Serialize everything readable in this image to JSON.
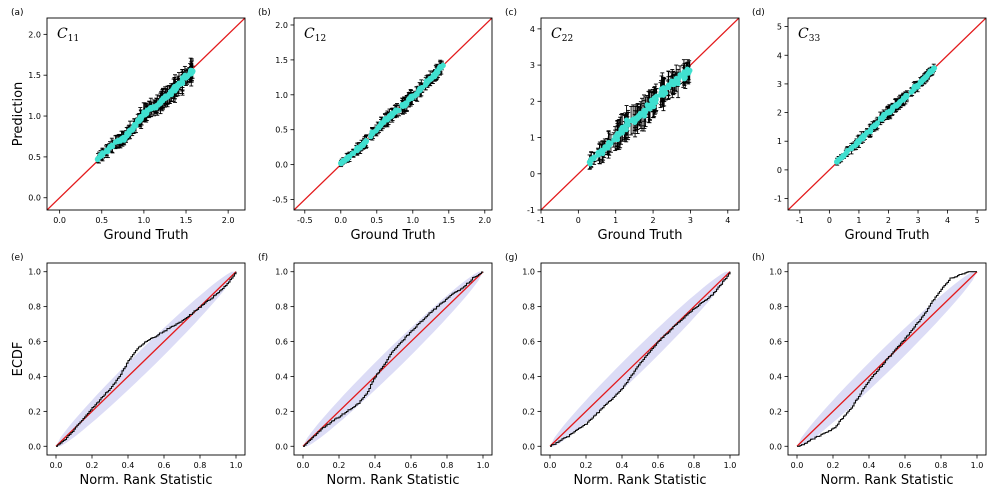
{
  "colors": {
    "identity_line": "#e31a1c",
    "ecdf_line": "#111111",
    "prediction_points": "#40e0d0",
    "error_bars": "#000000",
    "confidence_band": "#dcdcf6"
  },
  "chart_data": [
    {
      "panel": "(a)",
      "type": "scatter",
      "title": "C",
      "title_sub": "11",
      "xlabel": "Ground Truth",
      "ylabel": "Prediction",
      "xlim": [
        -0.15,
        2.2
      ],
      "ylim": [
        -0.15,
        2.2
      ],
      "xticks": [
        "0.0",
        "0.5",
        "1.0",
        "1.5",
        "2.0"
      ],
      "yticks": [
        "0.0",
        "0.5",
        "1.0",
        "1.5",
        "2.0"
      ],
      "identity_line": true,
      "data_range": [
        0.45,
        1.58
      ],
      "points": [
        {
          "x": 0.45,
          "y": 0.47,
          "err": 0.05
        },
        {
          "x": 0.6,
          "y": 0.62,
          "err": 0.06
        },
        {
          "x": 0.8,
          "y": 0.76,
          "err": 0.07
        },
        {
          "x": 1.0,
          "y": 1.02,
          "err": 0.08
        },
        {
          "x": 1.2,
          "y": 1.17,
          "err": 0.09
        },
        {
          "x": 1.4,
          "y": 1.38,
          "err": 0.1
        },
        {
          "x": 1.58,
          "y": 1.55,
          "err": 0.1
        }
      ]
    },
    {
      "panel": "(b)",
      "type": "scatter",
      "title": "C",
      "title_sub": "12",
      "xlabel": "Ground Truth",
      "ylabel": "",
      "xlim": [
        -0.65,
        2.1
      ],
      "ylim": [
        -0.65,
        2.1
      ],
      "xticks": [
        "-0.5",
        "0.0",
        "0.5",
        "1.0",
        "1.5",
        "2.0"
      ],
      "yticks": [
        "-0.5",
        "0.0",
        "0.5",
        "1.0",
        "1.5",
        "2.0"
      ],
      "identity_line": true,
      "data_range": [
        0.0,
        1.42
      ],
      "points": [
        {
          "x": 0.0,
          "y": 0.02,
          "err": 0.04
        },
        {
          "x": 0.3,
          "y": 0.28,
          "err": 0.06
        },
        {
          "x": 0.6,
          "y": 0.62,
          "err": 0.07
        },
        {
          "x": 0.9,
          "y": 0.88,
          "err": 0.08
        },
        {
          "x": 1.2,
          "y": 1.18,
          "err": 0.08
        },
        {
          "x": 1.42,
          "y": 1.42,
          "err": 0.07
        }
      ]
    },
    {
      "panel": "(c)",
      "type": "scatter",
      "title": "C",
      "title_sub": "22",
      "xlabel": "Ground Truth",
      "ylabel": "",
      "xlim": [
        -1.0,
        4.3
      ],
      "ylim": [
        -1.0,
        4.3
      ],
      "xticks": [
        "-1",
        "0",
        "1",
        "2",
        "3",
        "4"
      ],
      "yticks": [
        "-1",
        "0",
        "1",
        "2",
        "3",
        "4"
      ],
      "identity_line": true,
      "data_range": [
        0.3,
        2.98
      ],
      "points": [
        {
          "x": 0.3,
          "y": 0.32,
          "err": 0.15
        },
        {
          "x": 0.8,
          "y": 0.78,
          "err": 0.25
        },
        {
          "x": 1.3,
          "y": 1.35,
          "err": 0.3
        },
        {
          "x": 1.8,
          "y": 1.75,
          "err": 0.3
        },
        {
          "x": 2.3,
          "y": 2.32,
          "err": 0.3
        },
        {
          "x": 2.98,
          "y": 2.85,
          "err": 0.25
        }
      ]
    },
    {
      "panel": "(d)",
      "type": "scatter",
      "title": "C",
      "title_sub": "33",
      "xlabel": "Ground Truth",
      "ylabel": "",
      "xlim": [
        -1.4,
        5.3
      ],
      "ylim": [
        -1.4,
        5.3
      ],
      "xticks": [
        "-1",
        "0",
        "1",
        "2",
        "3",
        "4",
        "5"
      ],
      "yticks": [
        "-1",
        "0",
        "1",
        "2",
        "3",
        "4",
        "5"
      ],
      "identity_line": true,
      "data_range": [
        0.25,
        3.55
      ],
      "points": [
        {
          "x": 0.25,
          "y": 0.28,
          "err": 0.08
        },
        {
          "x": 1.0,
          "y": 0.98,
          "err": 0.15
        },
        {
          "x": 1.8,
          "y": 1.82,
          "err": 0.15
        },
        {
          "x": 2.6,
          "y": 2.55,
          "err": 0.15
        },
        {
          "x": 3.55,
          "y": 3.55,
          "err": 0.1
        }
      ]
    },
    {
      "panel": "(e)",
      "type": "line",
      "xlabel": "Norm. Rank Statistic",
      "ylabel": "ECDF",
      "xlim": [
        -0.05,
        1.05
      ],
      "ylim": [
        -0.05,
        1.05
      ],
      "xticks": [
        "0.0",
        "0.2",
        "0.4",
        "0.6",
        "0.8",
        "1.0"
      ],
      "yticks": [
        "0.0",
        "0.2",
        "0.4",
        "0.6",
        "0.8",
        "1.0"
      ],
      "identity_line": true,
      "band_halfwidth": 0.05,
      "ecdf": {
        "x": [
          0.0,
          0.05,
          0.1,
          0.2,
          0.3,
          0.35,
          0.4,
          0.45,
          0.5,
          0.55,
          0.6,
          0.7,
          0.8,
          0.9,
          0.95,
          1.0
        ],
        "y": [
          0.0,
          0.04,
          0.1,
          0.22,
          0.33,
          0.4,
          0.49,
          0.56,
          0.6,
          0.63,
          0.66,
          0.72,
          0.8,
          0.88,
          0.93,
          1.0
        ]
      }
    },
    {
      "panel": "(f)",
      "type": "line",
      "xlabel": "Norm. Rank Statistic",
      "ylabel": "",
      "xlim": [
        -0.05,
        1.05
      ],
      "ylim": [
        -0.05,
        1.05
      ],
      "xticks": [
        "0.0",
        "0.2",
        "0.4",
        "0.6",
        "0.8",
        "1.0"
      ],
      "yticks": [
        "0.0",
        "0.2",
        "0.4",
        "0.6",
        "0.8",
        "1.0"
      ],
      "identity_line": true,
      "band_halfwidth": 0.05,
      "ecdf": {
        "x": [
          0.0,
          0.05,
          0.1,
          0.2,
          0.3,
          0.35,
          0.4,
          0.45,
          0.5,
          0.6,
          0.7,
          0.8,
          0.9,
          0.95,
          1.0
        ],
        "y": [
          0.0,
          0.05,
          0.1,
          0.17,
          0.24,
          0.3,
          0.4,
          0.47,
          0.55,
          0.66,
          0.76,
          0.85,
          0.92,
          0.97,
          1.0
        ]
      }
    },
    {
      "panel": "(g)",
      "type": "line",
      "xlabel": "Norm. Rank Statistic",
      "ylabel": "",
      "xlim": [
        -0.05,
        1.05
      ],
      "ylim": [
        -0.05,
        1.05
      ],
      "xticks": [
        "0.0",
        "0.2",
        "0.4",
        "0.6",
        "0.8",
        "1.0"
      ],
      "yticks": [
        "0.0",
        "0.2",
        "0.4",
        "0.6",
        "0.8",
        "1.0"
      ],
      "identity_line": true,
      "band_halfwidth": 0.05,
      "ecdf": {
        "x": [
          0.0,
          0.05,
          0.1,
          0.2,
          0.3,
          0.4,
          0.5,
          0.6,
          0.7,
          0.8,
          0.9,
          0.95,
          1.0
        ],
        "y": [
          0.0,
          0.03,
          0.06,
          0.13,
          0.23,
          0.33,
          0.48,
          0.6,
          0.7,
          0.79,
          0.87,
          0.93,
          1.0
        ]
      }
    },
    {
      "panel": "(h)",
      "type": "line",
      "xlabel": "Norm. Rank Statistic",
      "ylabel": "",
      "xlim": [
        -0.05,
        1.05
      ],
      "ylim": [
        -0.05,
        1.05
      ],
      "xticks": [
        "0.0",
        "0.2",
        "0.4",
        "0.6",
        "0.8",
        "1.0"
      ],
      "yticks": [
        "0.0",
        "0.2",
        "0.4",
        "0.6",
        "0.8",
        "1.0"
      ],
      "identity_line": true,
      "band_halfwidth": 0.05,
      "ecdf": {
        "x": [
          0.0,
          0.05,
          0.1,
          0.2,
          0.3,
          0.4,
          0.5,
          0.6,
          0.7,
          0.75,
          0.8,
          0.85,
          0.9,
          0.95,
          1.0
        ],
        "y": [
          0.0,
          0.02,
          0.05,
          0.1,
          0.22,
          0.38,
          0.5,
          0.62,
          0.75,
          0.83,
          0.9,
          0.96,
          0.98,
          1.0,
          1.0
        ]
      }
    }
  ]
}
